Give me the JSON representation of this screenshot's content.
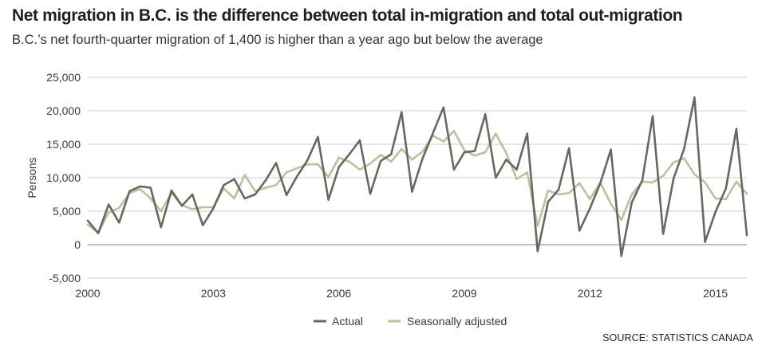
{
  "header": {
    "title": "Net migration in B.C. is the difference between total in-migration and total out-migration",
    "subtitle": "B.C.’s net fourth-quarter migration of 1,400 is higher than a year ago but below the average"
  },
  "footer": {
    "source": "SOURCE: STATISTICS CANADA"
  },
  "colors": {
    "actual": "#6b6660",
    "seasonally_adjusted": "#bcc09e",
    "grid": "#bdbdbd",
    "zero_line": "#9a9a9a"
  },
  "chart_data": {
    "type": "line",
    "title": "Net migration in B.C. is the difference between total in-migration and total out-migration",
    "subtitle": "B.C.’s net fourth-quarter migration of 1,400 is higher than a year ago but below the average",
    "xlabel": "",
    "ylabel": "Persons",
    "xlim": [
      2000,
      2015.75
    ],
    "ylim": [
      -5000,
      25000
    ],
    "x_ticks": [
      2000,
      2003,
      2006,
      2009,
      2012,
      2015
    ],
    "y_ticks": [
      -5000,
      0,
      5000,
      10000,
      15000,
      20000,
      25000
    ],
    "y_tick_labels": [
      "-5,000",
      "0",
      "5,000",
      "10,000",
      "15,000",
      "20,000",
      "25,000"
    ],
    "grid": true,
    "legend_position": "bottom-center",
    "x": [
      2000,
      2000.25,
      2000.5,
      2000.75,
      2001,
      2001.25,
      2001.5,
      2001.75,
      2002,
      2002.25,
      2002.5,
      2002.75,
      2003,
      2003.25,
      2003.5,
      2003.75,
      2004,
      2004.25,
      2004.5,
      2004.75,
      2005,
      2005.25,
      2005.5,
      2005.75,
      2006,
      2006.25,
      2006.5,
      2006.75,
      2007,
      2007.25,
      2007.5,
      2007.75,
      2008,
      2008.25,
      2008.5,
      2008.75,
      2009,
      2009.25,
      2009.5,
      2009.75,
      2010,
      2010.25,
      2010.5,
      2010.75,
      2011,
      2011.25,
      2011.5,
      2011.75,
      2012,
      2012.25,
      2012.5,
      2012.75,
      2013,
      2013.25,
      2013.5,
      2013.75,
      2014,
      2014.25,
      2014.5,
      2014.75,
      2015,
      2015.25,
      2015.5,
      2015.75
    ],
    "series": [
      {
        "name": "Actual",
        "values": [
          3600,
          1700,
          6000,
          3300,
          8000,
          8700,
          8500,
          2600,
          8100,
          5800,
          7500,
          2900,
          5400,
          8900,
          9800,
          6900,
          7500,
          9600,
          12200,
          7400,
          10200,
          12600,
          16100,
          6700,
          11600,
          13500,
          15600,
          7600,
          12500,
          13500,
          19800,
          7900,
          12900,
          16700,
          20500,
          11200,
          13800,
          14000,
          19500,
          10000,
          12700,
          11200,
          16600,
          -1000,
          6400,
          8200,
          14400,
          2100,
          5400,
          9200,
          14200,
          -1700,
          6300,
          9600,
          19200,
          1600,
          9900,
          14300,
          22000,
          400,
          4900,
          8400,
          17300,
          1400
        ]
      },
      {
        "name": "Seasonally adjusted",
        "values": [
          3000,
          1800,
          4800,
          5500,
          7700,
          8300,
          6900,
          5000,
          7700,
          5900,
          5300,
          5600,
          5600,
          8400,
          6900,
          10400,
          8000,
          8500,
          8900,
          10800,
          11400,
          12000,
          12000,
          10100,
          13000,
          12400,
          11200,
          12100,
          13400,
          12400,
          14300,
          12700,
          13900,
          16300,
          15400,
          17000,
          14100,
          13300,
          13800,
          16600,
          13700,
          9800,
          10800,
          2800,
          8100,
          7500,
          7700,
          9200,
          6800,
          9300,
          6100,
          3700,
          7500,
          9400,
          9300,
          10300,
          12300,
          12900,
          10500,
          9300,
          6900,
          6800,
          9400,
          7600
        ]
      }
    ]
  }
}
